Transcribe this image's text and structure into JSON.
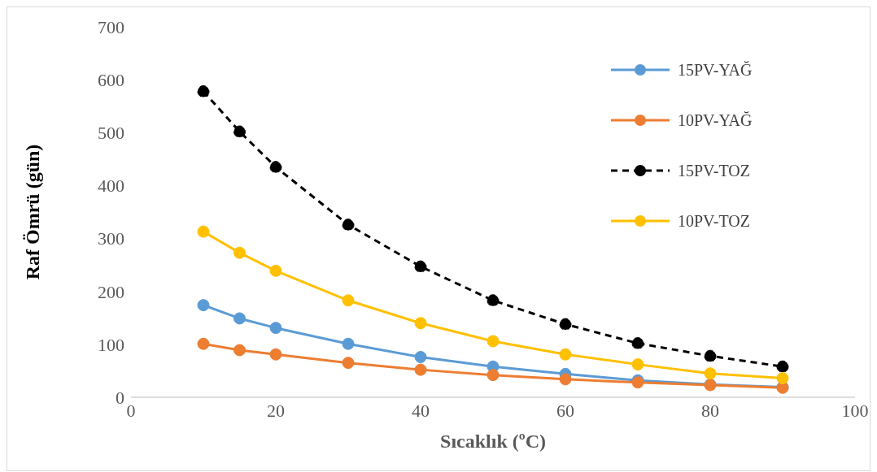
{
  "chart_data": {
    "type": "line",
    "xlabel": "Sıcaklık (ºC)",
    "ylabel": "Raf Ömrü (gün)",
    "x": [
      10,
      15,
      20,
      30,
      40,
      50,
      60,
      70,
      80,
      90
    ],
    "series": [
      {
        "name": "15PV-YAĞ",
        "color": "#5b9bd5",
        "values": [
          174,
          149,
          131,
          101,
          76,
          58,
          44,
          32,
          24,
          19
        ]
      },
      {
        "name": "10PV-YAĞ",
        "color": "#ed7d31",
        "values": [
          101,
          89,
          81,
          65,
          52,
          42,
          34,
          28,
          23,
          18
        ]
      },
      {
        "name": "15PV-TOZ",
        "color": "#000000",
        "line_style": "dashed",
        "values": [
          578,
          502,
          435,
          326,
          247,
          183,
          138,
          102,
          78,
          58
        ]
      },
      {
        "name": "10PV-TOZ",
        "color": "#ffc000",
        "values": [
          313,
          273,
          239,
          183,
          140,
          106,
          81,
          62,
          45,
          36
        ]
      }
    ],
    "xlim": [
      0,
      100
    ],
    "xticks": [
      0,
      20,
      40,
      60,
      80,
      100
    ],
    "ylim": [
      0,
      700
    ],
    "yticks": [
      0,
      100,
      200,
      300,
      400,
      500,
      600,
      700
    ],
    "legend": "top right",
    "marker": "circle",
    "line_style": "solid"
  }
}
